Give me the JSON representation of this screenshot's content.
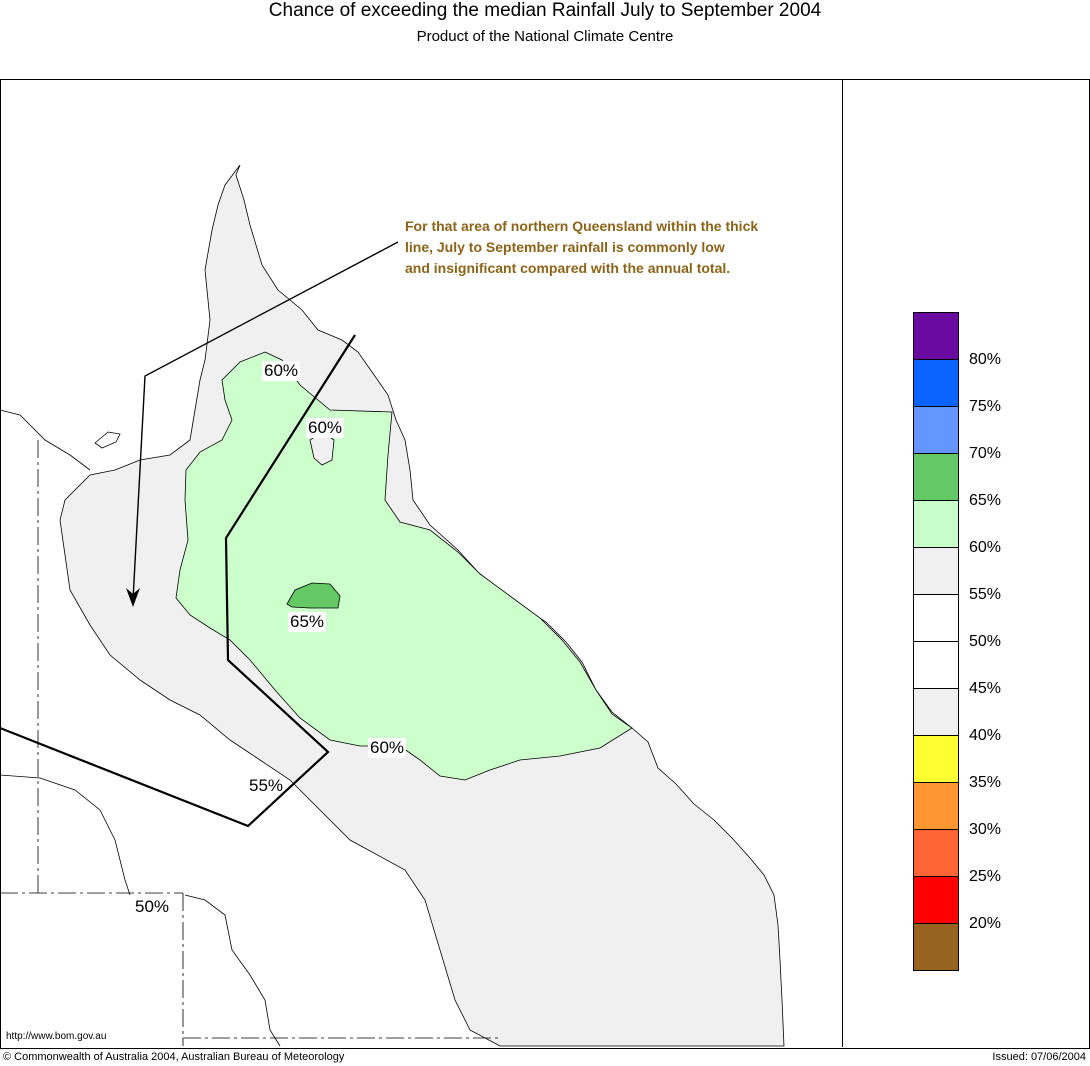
{
  "header": {
    "title": "Chance of exceeding the median Rainfall July to September 2004",
    "subtitle": "Product of the National Climate Centre"
  },
  "annotation": {
    "lines": [
      "For that area of northern Queensland within the thick",
      "line, July to September rainfall is commonly low",
      "and insignificant compared with the annual total."
    ],
    "color": "#8c6419"
  },
  "contour_labels": [
    {
      "text": "60%"
    },
    {
      "text": "60%"
    },
    {
      "text": "65%"
    },
    {
      "text": "60%"
    },
    {
      "text": "55%"
    },
    {
      "text": "50%"
    }
  ],
  "legend": {
    "colors": [
      "#6a0aa0",
      "#0a64ff",
      "#6496ff",
      "#64c864",
      "#c8ffc8",
      "#f0f0f0",
      "#ffffff",
      "#ffffff",
      "#f0f0f0",
      "#ffff32",
      "#ff9632",
      "#ff6432",
      "#ff0000",
      "#96641e"
    ],
    "ticks": [
      "80%",
      "75%",
      "70%",
      "65%",
      "60%",
      "55%",
      "50%",
      "45%",
      "40%",
      "35%",
      "30%",
      "25%",
      "20%"
    ]
  },
  "footer": {
    "url": "http://www.bom.gov.au",
    "copyright": "© Commonwealth of Australia 2004, Australian Bureau of Meteorology",
    "issued": "Issued: 07/06/2004"
  }
}
